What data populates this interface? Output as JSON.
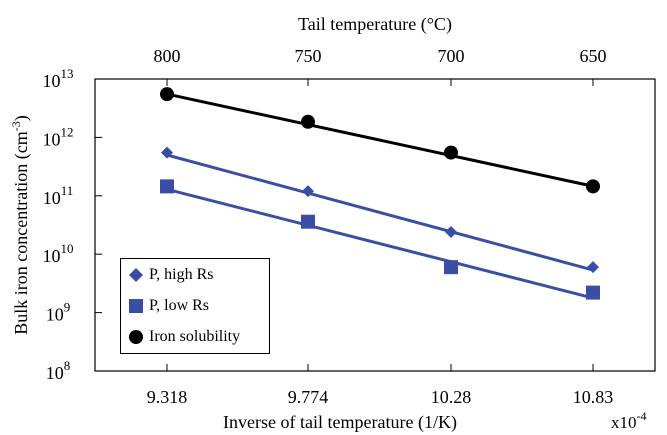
{
  "chart_data": {
    "type": "scatter",
    "title": "",
    "xlabel": "Inverse of tail temperature (1/K)",
    "x_multiplier": "x10",
    "x_multiplier_exp": "-4",
    "ylabel": "Bulk iron concentration (cm",
    "ylabel_exp": "-3",
    "ylabel_close": ")",
    "top_xlabel": "Tail temperature (°C)",
    "x_ticks": [
      "9.318",
      "9.774",
      "10.28",
      "10.83"
    ],
    "top_ticks": [
      "800",
      "750",
      "700",
      "650"
    ],
    "y_log_scale": true,
    "y_tick_base": "10",
    "y_tick_exponents": [
      "8",
      "9",
      "10",
      "11",
      "12",
      "13"
    ],
    "ylim": [
      100000000.0,
      10000000000000.0
    ],
    "x": [
      9.318,
      9.774,
      10.28,
      10.83
    ],
    "series": [
      {
        "name": "P, high Rs",
        "marker": "diamond",
        "color": "#3b4ea5",
        "values": [
          550000000000.0,
          120000000000.0,
          24000000000.0,
          6000000000.0
        ]
      },
      {
        "name": "P, low Rs",
        "marker": "square",
        "color": "#3b4ea5",
        "values": [
          145000000000.0,
          36000000000.0,
          6000000000.0,
          2200000000.0
        ]
      },
      {
        "name": "Iron solubility",
        "marker": "circle",
        "color": "#000000",
        "values": [
          5500000000000.0,
          1850000000000.0,
          550000000000.0,
          145000000000.0
        ]
      }
    ],
    "legend_position": "bottom-left",
    "grid": false
  }
}
